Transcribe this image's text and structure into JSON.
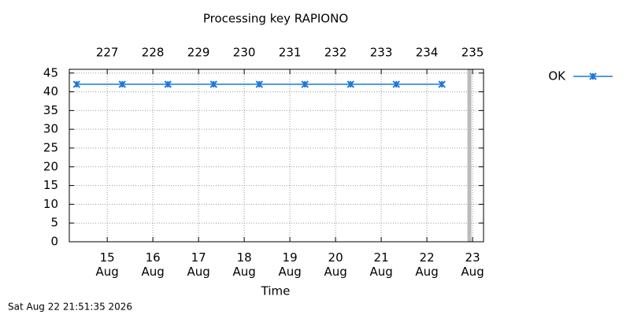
{
  "chart_data": {
    "type": "line",
    "title": "Processing key RAPIONO",
    "x_label": "Time",
    "footer": "Sat Aug 22 21:51:35 2026",
    "x": [
      14.33,
      15.33,
      16.33,
      17.33,
      18.33,
      19.33,
      20.33,
      21.33,
      22.33
    ],
    "series": [
      {
        "name": "OK",
        "color": "#1a78d8",
        "values": [
          42,
          42,
          42,
          42,
          42,
          42,
          42,
          42,
          42
        ]
      }
    ],
    "xlim": [
      14.17,
      23.24
    ],
    "xticks": [
      {
        "value": 15,
        "label": "15\nAug"
      },
      {
        "value": 16,
        "label": "16\nAug"
      },
      {
        "value": 17,
        "label": "17\nAug"
      },
      {
        "value": 18,
        "label": "18\nAug"
      },
      {
        "value": 19,
        "label": "19\nAug"
      },
      {
        "value": 20,
        "label": "20\nAug"
      },
      {
        "value": 21,
        "label": "21\nAug"
      },
      {
        "value": 22,
        "label": "22\nAug"
      },
      {
        "value": 23,
        "label": "23\nAug"
      }
    ],
    "x2ticks": [
      {
        "value": 15,
        "label": "227"
      },
      {
        "value": 16,
        "label": "228"
      },
      {
        "value": 17,
        "label": "229"
      },
      {
        "value": 18,
        "label": "230"
      },
      {
        "value": 19,
        "label": "231"
      },
      {
        "value": 20,
        "label": "232"
      },
      {
        "value": 21,
        "label": "233"
      },
      {
        "value": 22,
        "label": "234"
      },
      {
        "value": 23,
        "label": "235"
      }
    ],
    "ylim": [
      0,
      46
    ],
    "yticks": [
      0,
      5,
      10,
      15,
      20,
      25,
      30,
      35,
      40,
      45
    ],
    "now_marker_x": 22.93,
    "now_marker_color": "#bbbbbb",
    "grid": true,
    "legend": "top-right"
  }
}
